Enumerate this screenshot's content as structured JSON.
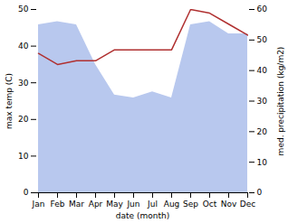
{
  "chart_data": {
    "type": "line",
    "categories": [
      "Jan",
      "Feb",
      "Mar",
      "Apr",
      "May",
      "Jun",
      "Jul",
      "Aug",
      "Sep",
      "Oct",
      "Nov",
      "Dec"
    ],
    "xlabel": "date (month)",
    "ylabel": "max temp (C)",
    "y2label": "med. precipitation (kg/m2)",
    "ylim": [
      0,
      50
    ],
    "yticks": [
      0,
      10,
      20,
      30,
      40,
      50
    ],
    "y2lim": [
      0,
      60
    ],
    "y2ticks": [
      0,
      10,
      20,
      30,
      40,
      50,
      60
    ],
    "grid": false,
    "series": [
      {
        "type": "area",
        "axis": "y2",
        "color": "#b8c8ee",
        "values": [
          55,
          56,
          55,
          42,
          32,
          31,
          33,
          31,
          55,
          56,
          52,
          52
        ]
      },
      {
        "type": "line",
        "color": "#b03030",
        "values": [
          38,
          35,
          36,
          36,
          39,
          39,
          39,
          39,
          50,
          49,
          46,
          43
        ]
      }
    ]
  }
}
